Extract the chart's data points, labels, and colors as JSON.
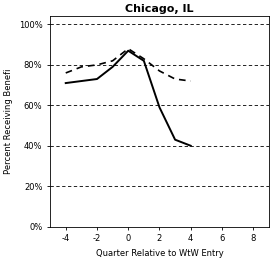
{
  "title": "Chicago, IL",
  "xlabel": "Quarter Relative to WtW Entry",
  "ylabel": "Percent Receiving Benefi",
  "xlim": [
    -5,
    9
  ],
  "ylim": [
    0.0,
    1.04
  ],
  "xticks": [
    -4,
    -2,
    0,
    2,
    4,
    6,
    8
  ],
  "yticks": [
    0.0,
    0.2,
    0.4,
    0.6,
    0.8,
    1.0
  ],
  "grid_color": "#000000",
  "solid_line": {
    "x": [
      -4,
      -3,
      -2,
      -1,
      0,
      1,
      2,
      3,
      4
    ],
    "y": [
      0.71,
      0.72,
      0.73,
      0.79,
      0.87,
      0.82,
      0.59,
      0.43,
      0.4
    ],
    "color": "#000000",
    "linewidth": 1.4,
    "linestyle": "-"
  },
  "dashed_line": {
    "x": [
      -4,
      -3,
      -2,
      -1,
      0,
      1,
      2,
      3,
      4
    ],
    "y": [
      0.76,
      0.79,
      0.8,
      0.82,
      0.88,
      0.83,
      0.77,
      0.73,
      0.72
    ],
    "color": "#000000",
    "linewidth": 1.2,
    "linestyle": "--"
  },
  "background_color": "#ffffff",
  "title_fontsize": 8,
  "axis_fontsize": 6,
  "tick_fontsize": 6
}
